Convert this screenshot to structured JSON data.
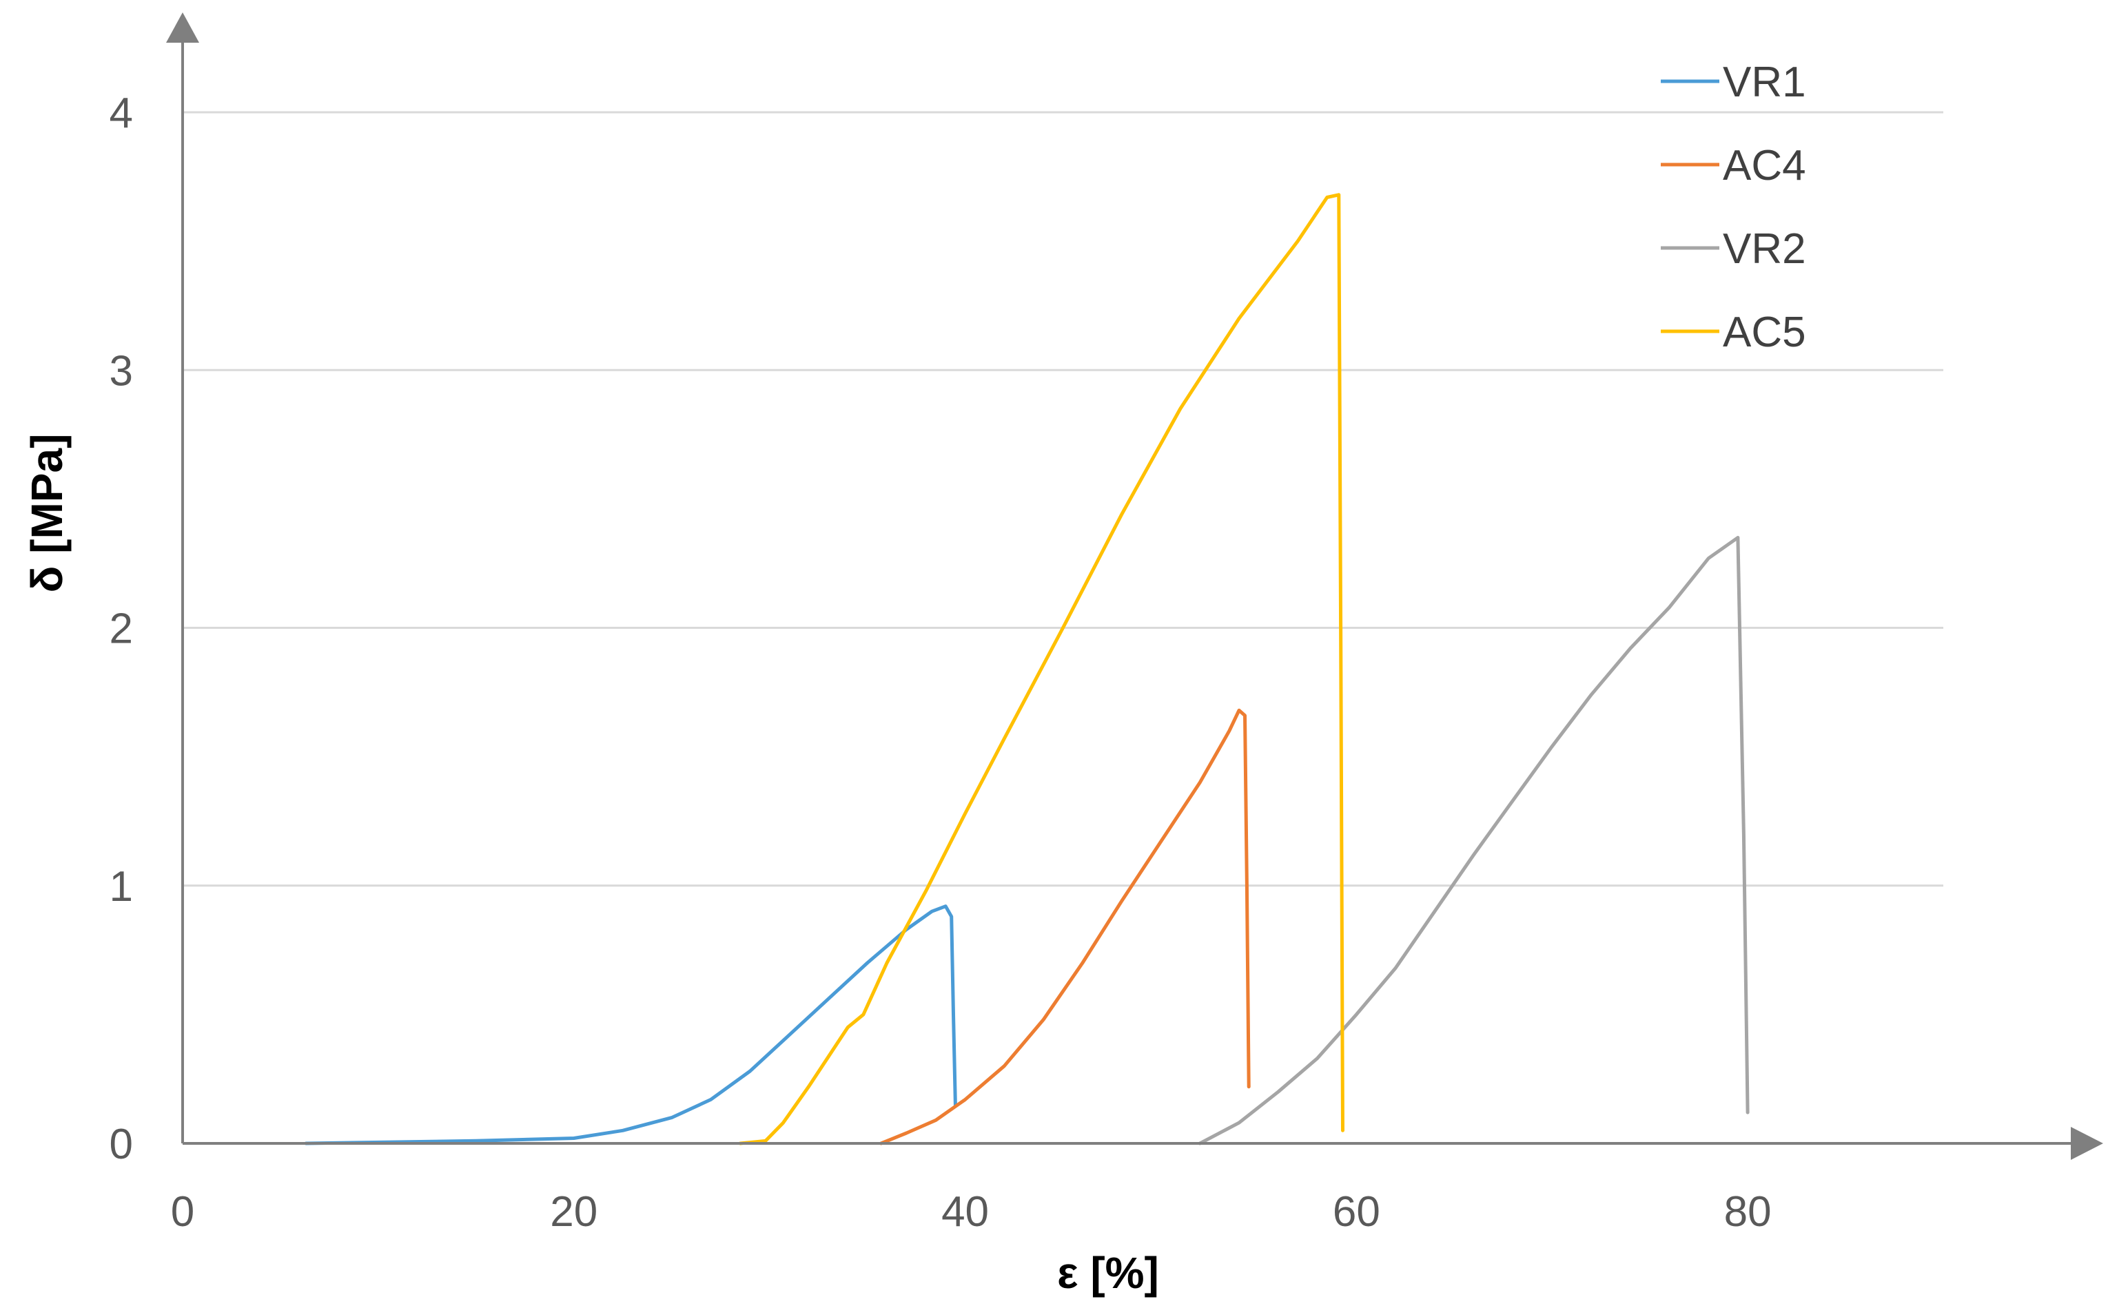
{
  "chart_data": {
    "type": "line",
    "title": "",
    "xlabel": "ε [%]",
    "ylabel": "δ [MPa]",
    "xlim": [
      0,
      90
    ],
    "ylim": [
      0,
      4
    ],
    "x_ticks": [
      "0",
      "20",
      "40",
      "60",
      "80"
    ],
    "x_tick_values": [
      0,
      20,
      40,
      60,
      80
    ],
    "y_ticks": [
      "0",
      "1",
      "2",
      "3",
      "4"
    ],
    "y_tick_values": [
      0,
      1,
      2,
      3,
      4
    ],
    "grid": "horizontal",
    "legend_position": "top-right",
    "series": [
      {
        "name": "VR1",
        "color": "#4a9bd6",
        "points": [
          [
            6.3,
            0
          ],
          [
            15,
            0.01
          ],
          [
            20,
            0.02
          ],
          [
            22.5,
            0.05
          ],
          [
            25,
            0.1
          ],
          [
            27,
            0.17
          ],
          [
            29,
            0.28
          ],
          [
            31,
            0.42
          ],
          [
            33,
            0.56
          ],
          [
            35,
            0.7
          ],
          [
            37,
            0.83
          ],
          [
            38.3,
            0.9
          ],
          [
            39,
            0.92
          ],
          [
            39.3,
            0.88
          ],
          [
            39.4,
            0.5
          ],
          [
            39.5,
            0.15
          ]
        ]
      },
      {
        "name": "AC4",
        "color": "#ed7d31",
        "points": [
          [
            35.7,
            0
          ],
          [
            37,
            0.04
          ],
          [
            38.5,
            0.09
          ],
          [
            40,
            0.17
          ],
          [
            42,
            0.3
          ],
          [
            44,
            0.48
          ],
          [
            46,
            0.7
          ],
          [
            48,
            0.94
          ],
          [
            50,
            1.17
          ],
          [
            52,
            1.4
          ],
          [
            53.5,
            1.6
          ],
          [
            54,
            1.68
          ],
          [
            54.3,
            1.66
          ],
          [
            54.4,
            1.0
          ],
          [
            54.5,
            0.22
          ]
        ]
      },
      {
        "name": "VR2",
        "color": "#a5a5a5",
        "points": [
          [
            52,
            0
          ],
          [
            54,
            0.08
          ],
          [
            56,
            0.2
          ],
          [
            58,
            0.33
          ],
          [
            60,
            0.5
          ],
          [
            62,
            0.68
          ],
          [
            64,
            0.9
          ],
          [
            66,
            1.12
          ],
          [
            68,
            1.33
          ],
          [
            70,
            1.54
          ],
          [
            72,
            1.74
          ],
          [
            74,
            1.92
          ],
          [
            76,
            2.08
          ],
          [
            78,
            2.27
          ],
          [
            79.5,
            2.35
          ],
          [
            79.8,
            1.2
          ],
          [
            80,
            0.12
          ]
        ]
      },
      {
        "name": "AC5",
        "color": "#ffc000",
        "points": [
          [
            28.5,
            0
          ],
          [
            29.8,
            0.01
          ],
          [
            30.7,
            0.08
          ],
          [
            32,
            0.22
          ],
          [
            34,
            0.45
          ],
          [
            34.8,
            0.5
          ],
          [
            36,
            0.7
          ],
          [
            38,
            0.98
          ],
          [
            40,
            1.28
          ],
          [
            42,
            1.57
          ],
          [
            45,
            2.0
          ],
          [
            48,
            2.44
          ],
          [
            51,
            2.85
          ],
          [
            54,
            3.2
          ],
          [
            57,
            3.5
          ],
          [
            58.5,
            3.67
          ],
          [
            59.1,
            3.68
          ],
          [
            59.2,
            2.0
          ],
          [
            59.3,
            0.05
          ]
        ]
      }
    ]
  }
}
